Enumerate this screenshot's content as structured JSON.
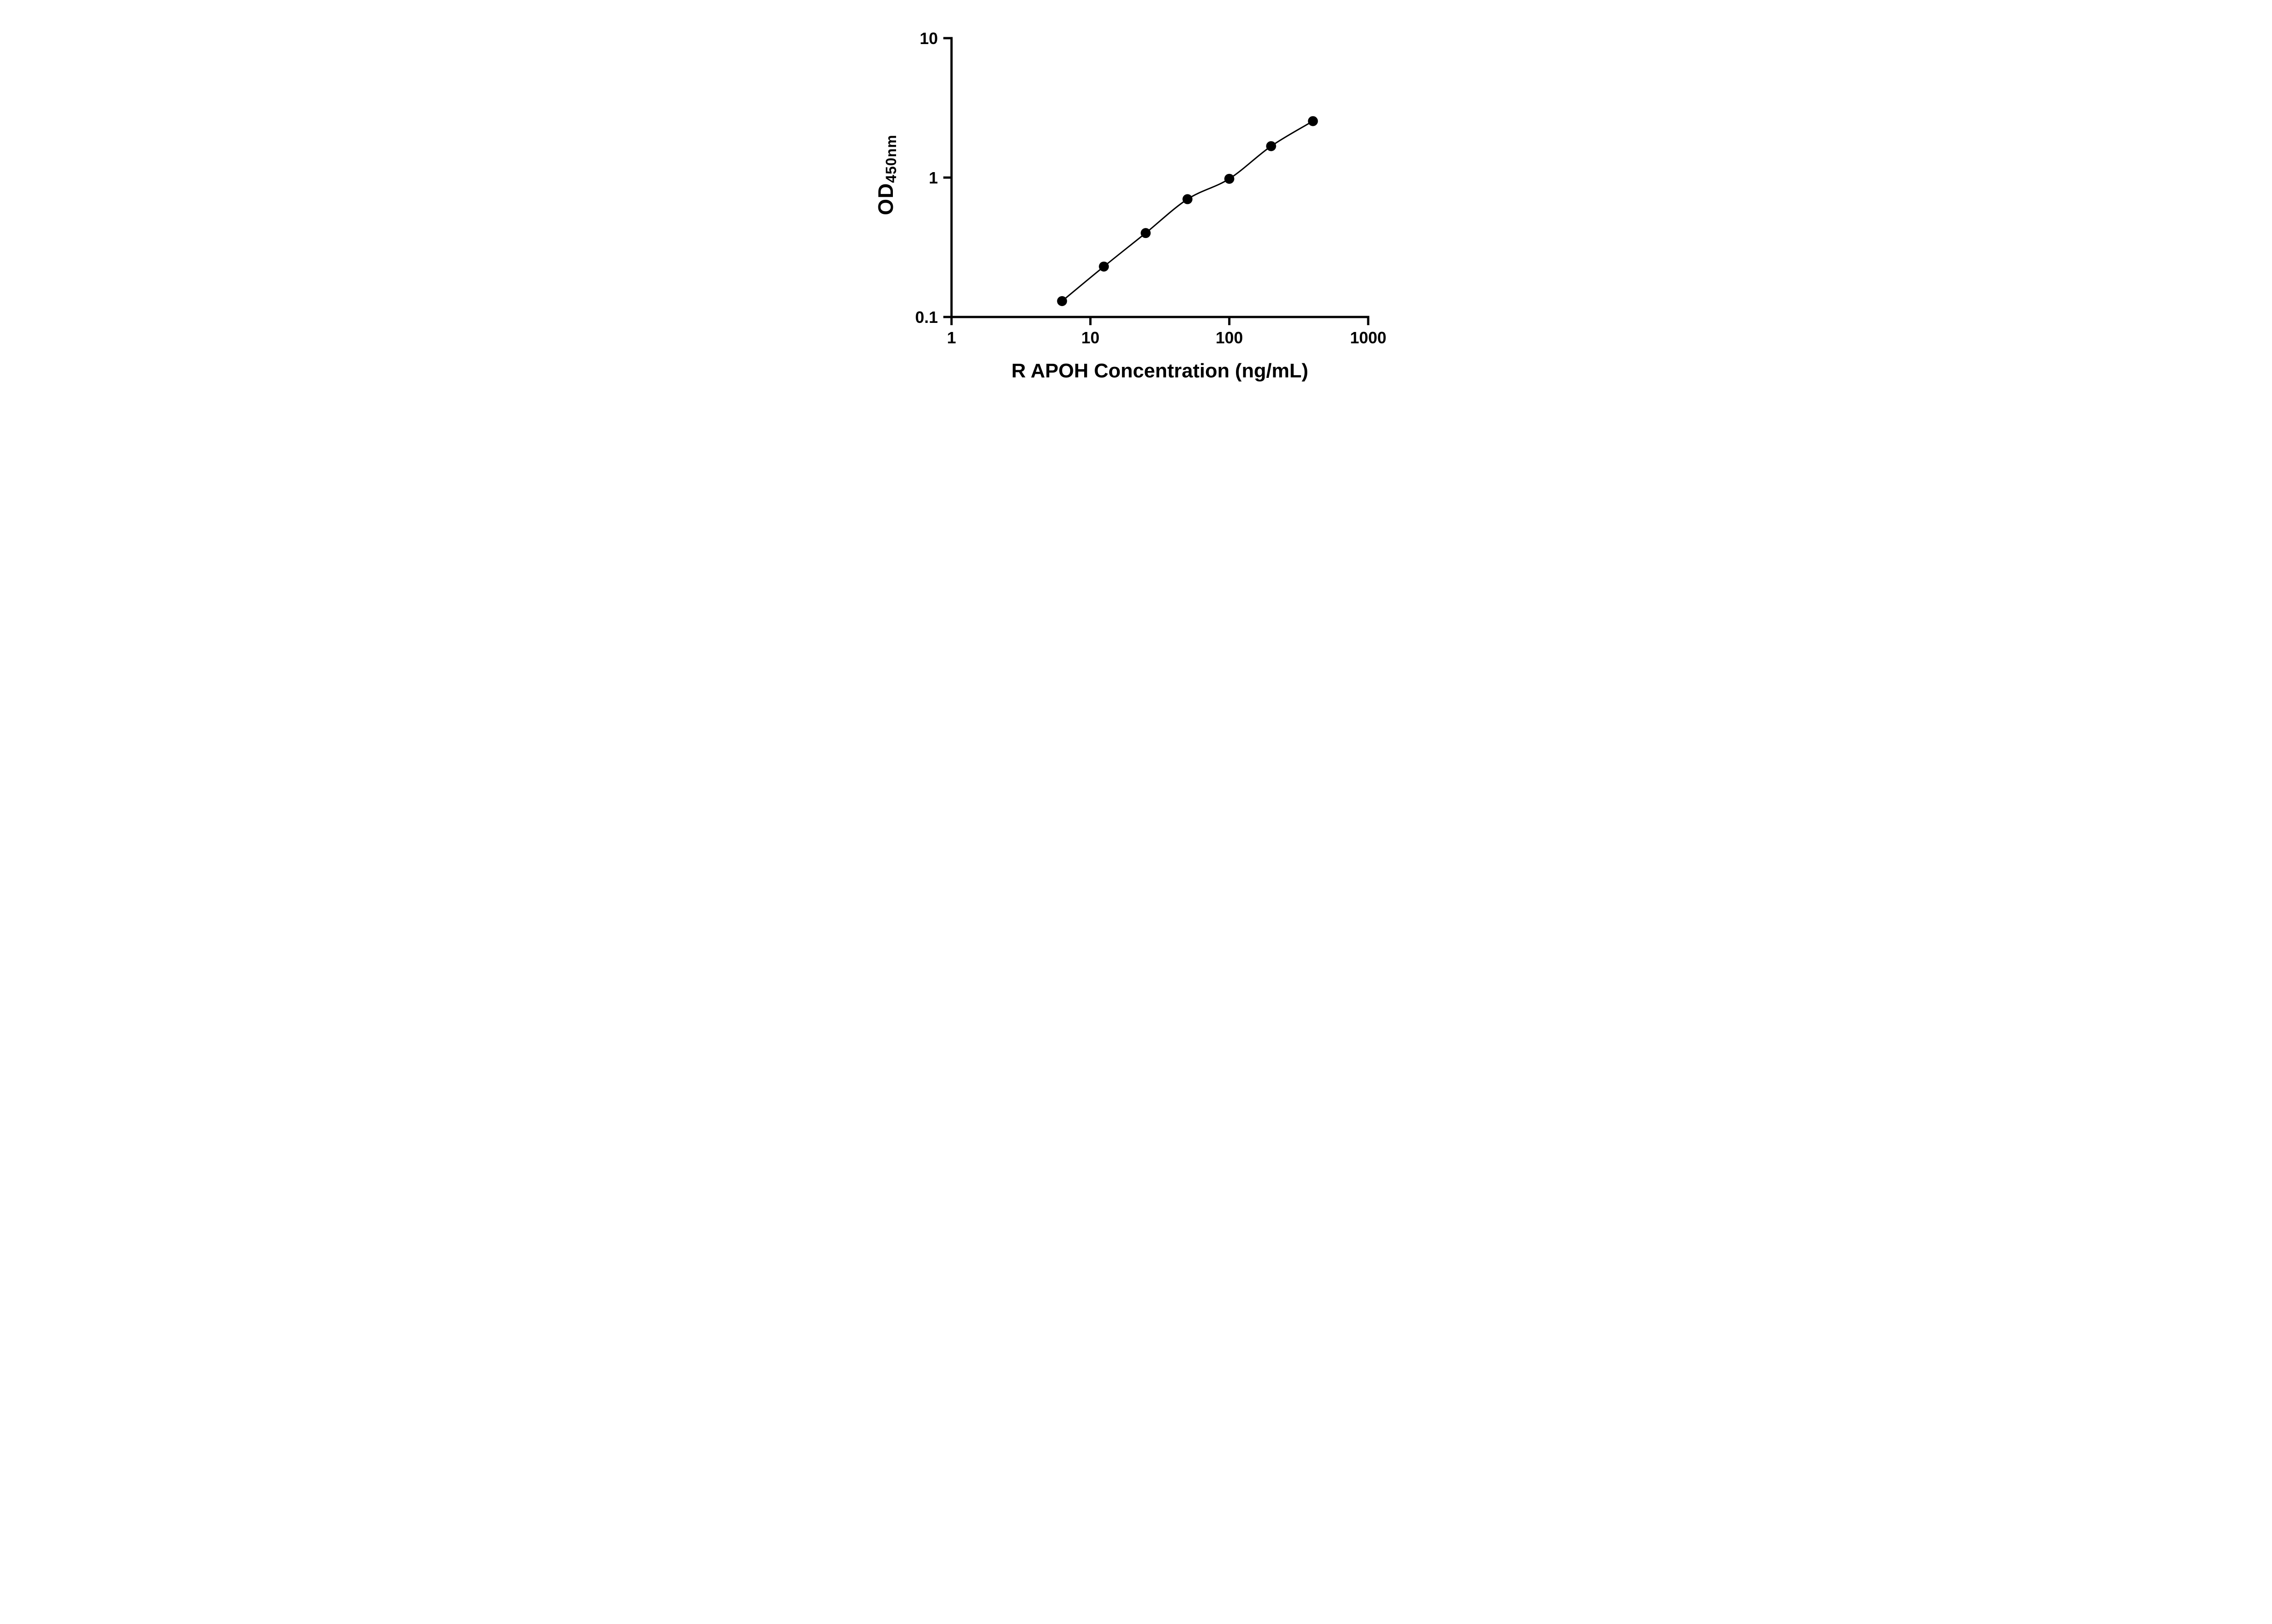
{
  "chart_data": {
    "type": "scatter",
    "xlabel": "R APOH Concentration (ng/mL)",
    "ylabel": "OD450nm",
    "ylabel_main": "OD",
    "ylabel_sub": "450nm",
    "x_scale": "log10",
    "y_scale": "log10",
    "xlim": [
      1,
      1000
    ],
    "ylim": [
      0.1,
      10
    ],
    "x_ticks": [
      1,
      10,
      100,
      1000
    ],
    "x_tick_labels": [
      "1",
      "10",
      "100",
      "1000"
    ],
    "y_ticks": [
      0.1,
      1,
      10
    ],
    "y_tick_labels": [
      "0.1",
      "1",
      "10"
    ],
    "grid": false,
    "legend": false,
    "marker_shape": "circle",
    "marker_color": "#000000",
    "line_color": "#000000",
    "x": [
      6.25,
      12.5,
      25,
      50,
      100,
      200,
      400
    ],
    "y": [
      0.13,
      0.23,
      0.4,
      0.7,
      0.98,
      1.68,
      2.54
    ]
  }
}
